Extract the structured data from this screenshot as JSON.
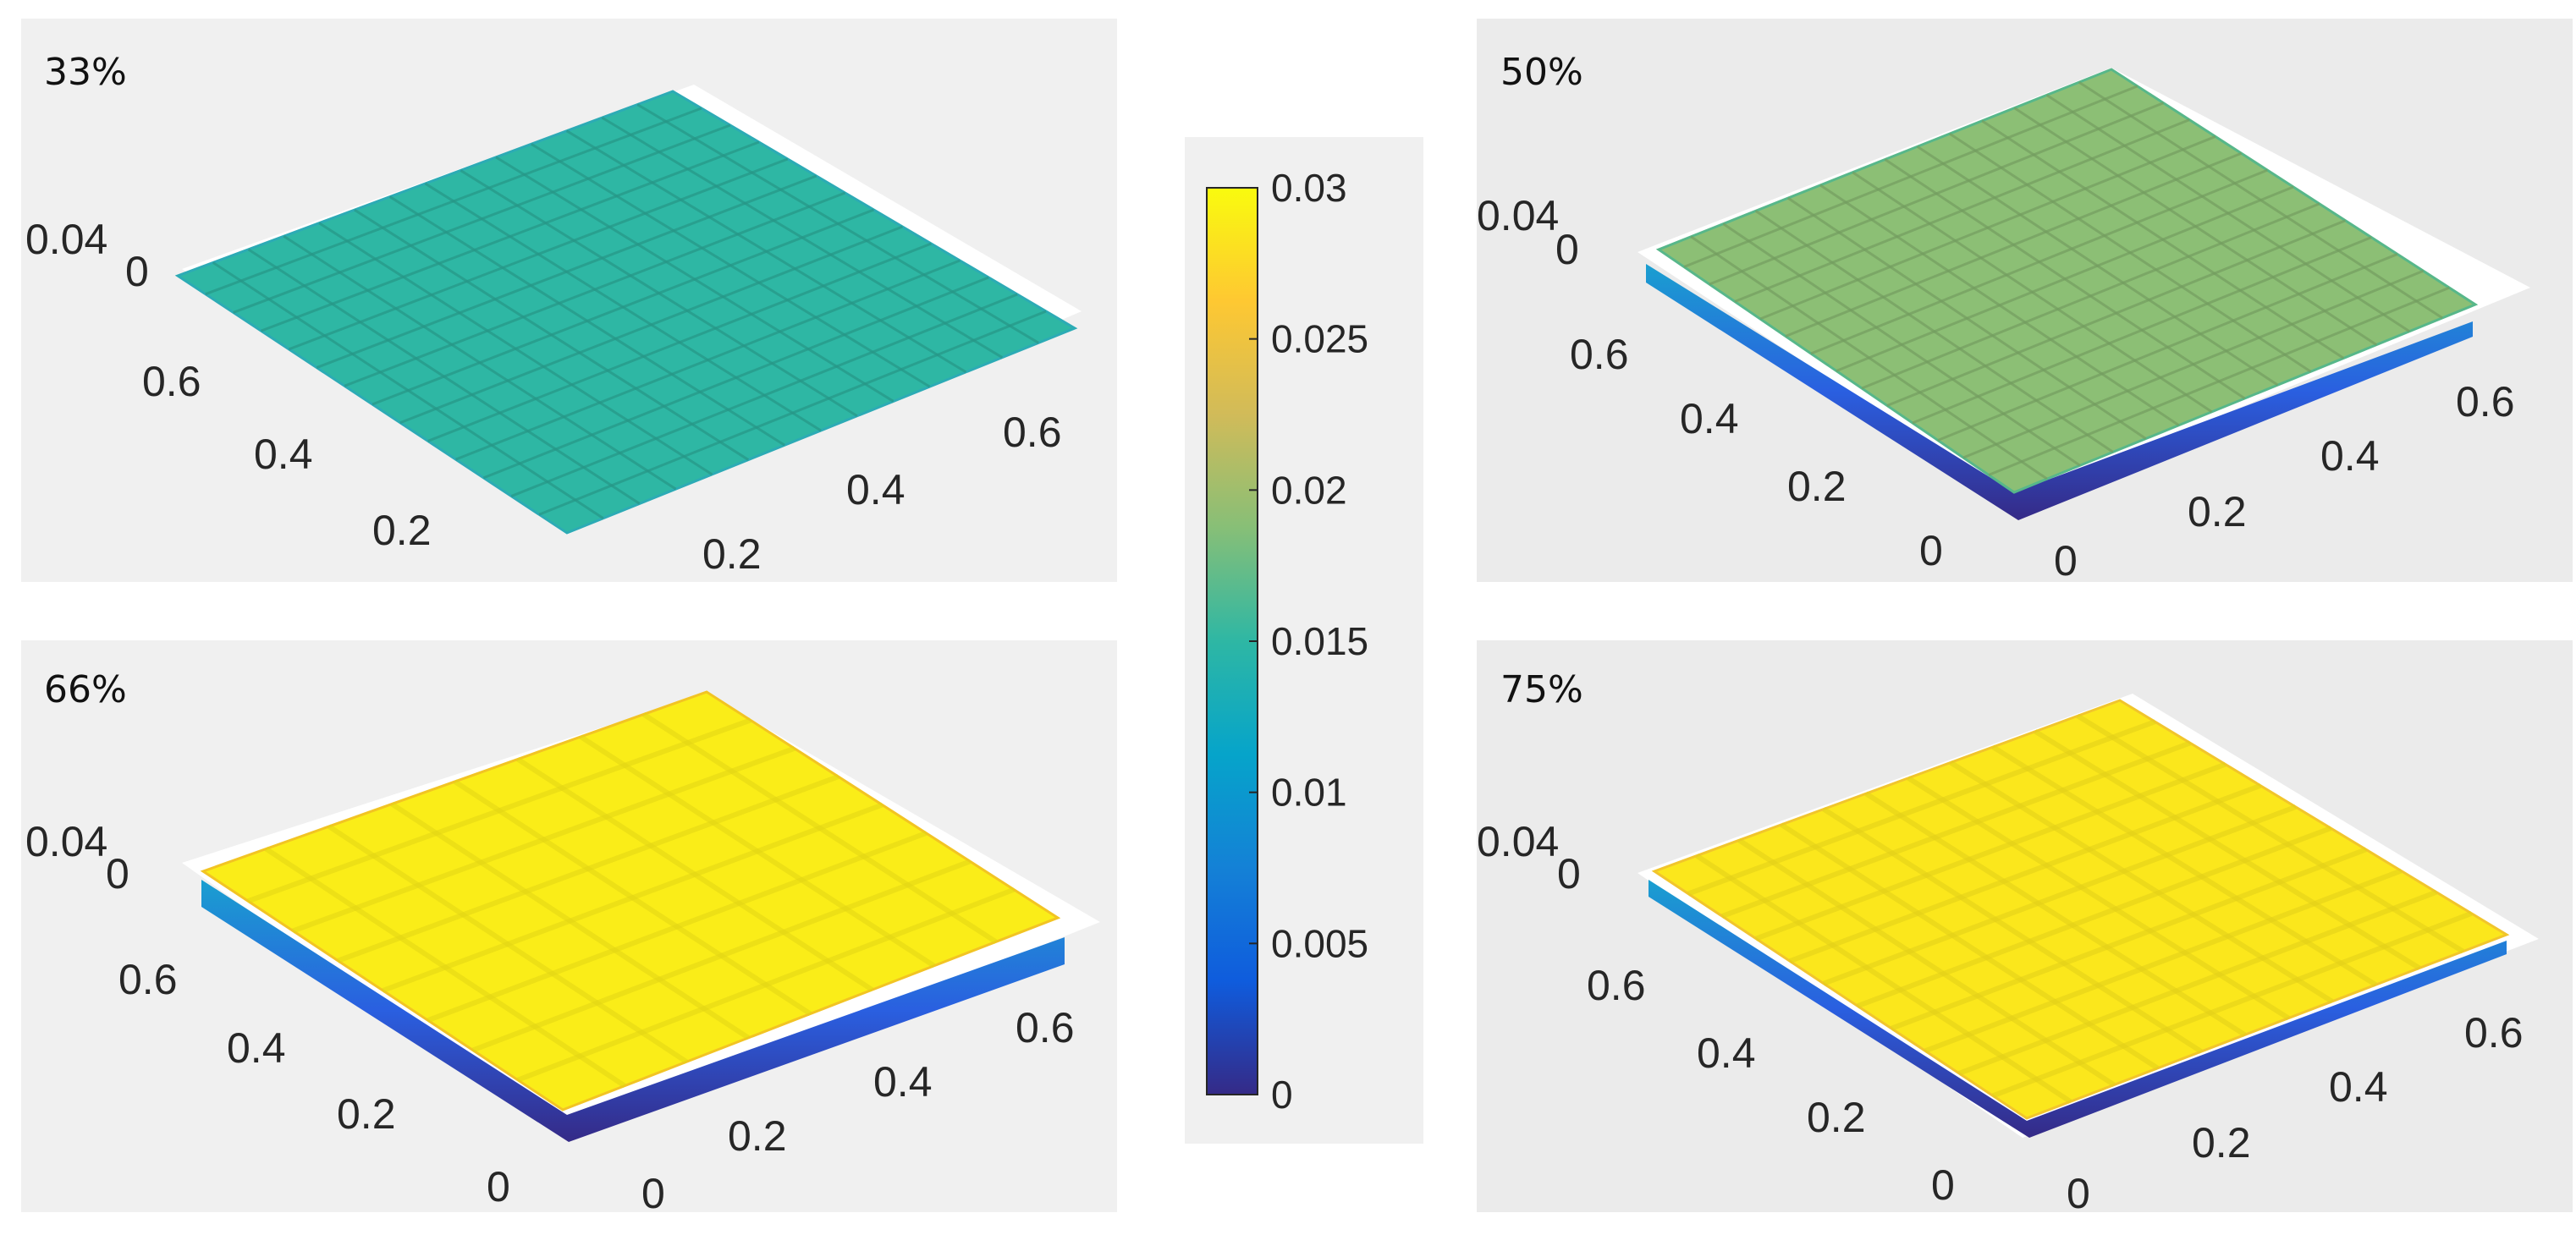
{
  "chart_data": {
    "type": "surface-grid",
    "colorbar": {
      "colormap": "parula",
      "range": [
        0,
        0.03
      ],
      "ticks": [
        "0.03",
        "0.025",
        "0.02",
        "0.015",
        "0.01",
        "0.005",
        "0"
      ],
      "tick_values": [
        0.03,
        0.025,
        0.02,
        0.015,
        0.01,
        0.005,
        0
      ]
    },
    "panels": [
      {
        "id": "p33",
        "label": "33%",
        "mean_value": 0.015,
        "grid_rows": 14,
        "z_ticks": [
          "0.04",
          "0"
        ],
        "x_ticks": [
          "0.2",
          "0.4",
          "0.6"
        ],
        "y_ticks": [
          "0.2",
          "0.4",
          "0.6"
        ]
      },
      {
        "id": "p50",
        "label": "50%",
        "mean_value": 0.019,
        "grid_rows": 14,
        "z_ticks": [
          "0.04",
          "0"
        ],
        "x_ticks": [
          "0",
          "0.2",
          "0.4",
          "0.6"
        ],
        "y_ticks": [
          "0",
          "0.2",
          "0.4",
          "0.6"
        ]
      },
      {
        "id": "p66",
        "label": "66%",
        "mean_value": 0.029,
        "grid_rows": 8,
        "z_ticks": [
          "0.04",
          "0"
        ],
        "x_ticks": [
          "0",
          "0.2",
          "0.4",
          "0.6"
        ],
        "y_ticks": [
          "0",
          "0.2",
          "0.4",
          "0.6"
        ]
      },
      {
        "id": "p75",
        "label": "75%",
        "mean_value": 0.0285,
        "grid_rows": 11,
        "z_ticks": [
          "0.04",
          "0"
        ],
        "x_ticks": [
          "0",
          "0.2",
          "0.4",
          "0.6"
        ],
        "y_ticks": [
          "0",
          "0.2",
          "0.4",
          "0.6"
        ]
      }
    ]
  }
}
